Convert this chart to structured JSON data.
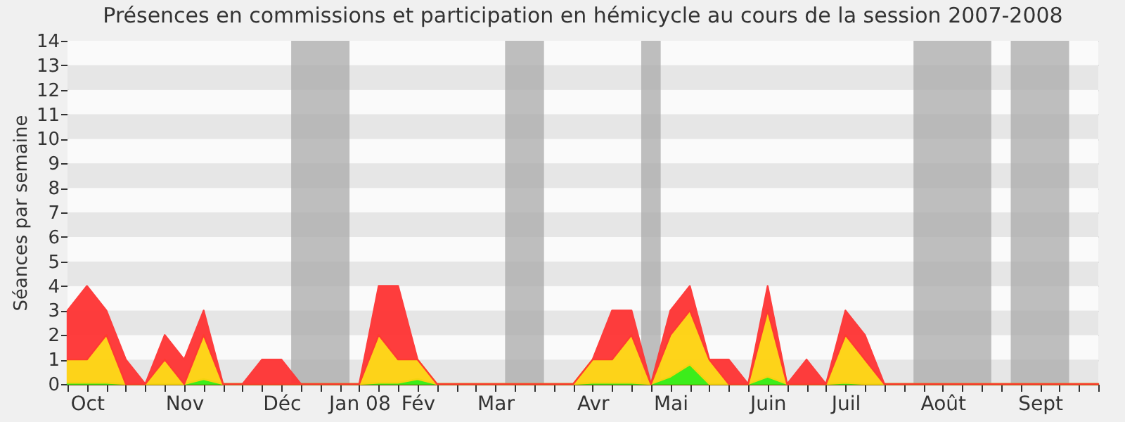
{
  "chart_data": {
    "type": "area",
    "stacked": true,
    "title": "Présences en commissions et participation en hémicycle au cours de la session 2007-2008",
    "ylabel": "Séances par semaine",
    "categories": [
      null,
      "Oct",
      null,
      null,
      null,
      null,
      "Nov",
      null,
      null,
      null,
      null,
      "Déc",
      null,
      null,
      null,
      "Jan 08",
      null,
      null,
      "Fév",
      null,
      null,
      null,
      "Mar",
      null,
      null,
      null,
      null,
      "Avr",
      null,
      null,
      null,
      "Mai",
      null,
      null,
      null,
      null,
      "Juin",
      null,
      null,
      null,
      "Juil",
      null,
      null,
      null,
      null,
      "Août",
      null,
      null,
      null,
      null,
      "Sept",
      null,
      null,
      null
    ],
    "series": [
      {
        "color": "#33ee11",
        "values": [
          0.05,
          0.05,
          0.05,
          0,
          0,
          0,
          0,
          0.2,
          0,
          0,
          0,
          0,
          0,
          0,
          0,
          0,
          0.05,
          0.05,
          0.2,
          0,
          0,
          0,
          0,
          0,
          0,
          0,
          0,
          0.05,
          0.05,
          0.05,
          0,
          0.3,
          0.8,
          0,
          0,
          0,
          0.3,
          0,
          0,
          0,
          0.05,
          0,
          0,
          0,
          0,
          0,
          0,
          0,
          0,
          0,
          0,
          0,
          0,
          0
        ]
      },
      {
        "color": "#ffd20f",
        "values": [
          0.95,
          0.95,
          1.95,
          0,
          0,
          1,
          0,
          1.8,
          0,
          0,
          0,
          0,
          0,
          0,
          0,
          0,
          1.95,
          0.95,
          0.8,
          0,
          0,
          0,
          0,
          0,
          0,
          0,
          0,
          0.95,
          0.95,
          1.95,
          0,
          1.7,
          2.2,
          1,
          0,
          0,
          2.7,
          0,
          0,
          0,
          1.95,
          1,
          0,
          0,
          0,
          0,
          0,
          0,
          0,
          0,
          0,
          0,
          0,
          0
        ]
      },
      {
        "color": "#ff3333",
        "values": [
          2,
          3,
          1,
          1,
          0,
          1,
          1,
          1,
          0,
          0,
          1,
          1,
          0,
          0,
          0,
          0,
          2,
          3,
          0,
          0,
          0,
          0,
          0,
          0,
          0,
          0,
          0,
          0,
          2,
          1,
          0,
          1,
          1,
          0,
          1,
          0,
          1,
          0,
          1,
          0,
          1,
          1,
          0,
          0,
          0,
          0,
          0,
          0,
          0,
          0,
          0,
          0,
          0,
          0
        ]
      }
    ],
    "ylim": [
      0,
      14
    ],
    "yticks": [
      0,
      1,
      2,
      3,
      4,
      5,
      6,
      7,
      8,
      9,
      10,
      11,
      12,
      13,
      14
    ],
    "grid": "y"
  }
}
